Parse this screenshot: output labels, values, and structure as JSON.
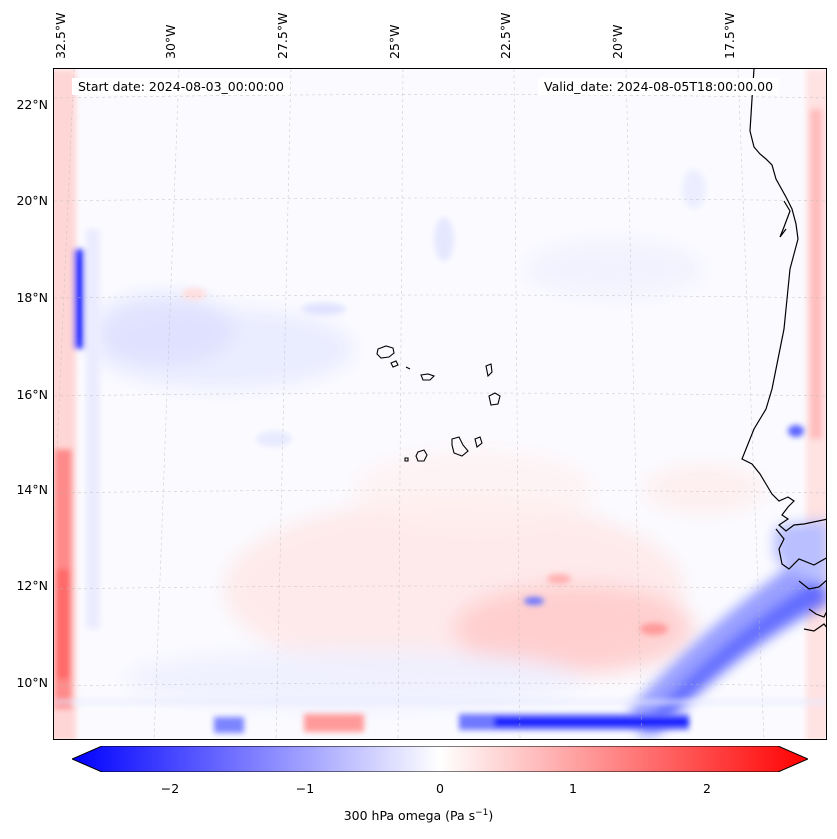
{
  "map": {
    "start_date": "Start date: 2024-08-03_00:00:00",
    "valid_date": "Valid_date: 2024-08-05T18:00:00.00",
    "lon_labels": [
      "32.5°W",
      "30°W",
      "27.5°W",
      "25°W",
      "22.5°W",
      "20°W",
      "17.5°W"
    ],
    "lat_labels": [
      "22°N",
      "20°N",
      "18°N",
      "16°N",
      "14°N",
      "12°N",
      "10°N"
    ],
    "colors": {
      "negative": "#0000ff",
      "zero": "#ffffff",
      "positive": "#ff0000",
      "coastline": "#000000"
    }
  },
  "colorbar": {
    "ticks": [
      "−2",
      "−1",
      "0",
      "1",
      "2"
    ],
    "label_main": "300 hPa omega (Pa s",
    "label_exp": "−1",
    "label_end": ")",
    "range": [
      -2.5,
      2.5
    ]
  }
}
